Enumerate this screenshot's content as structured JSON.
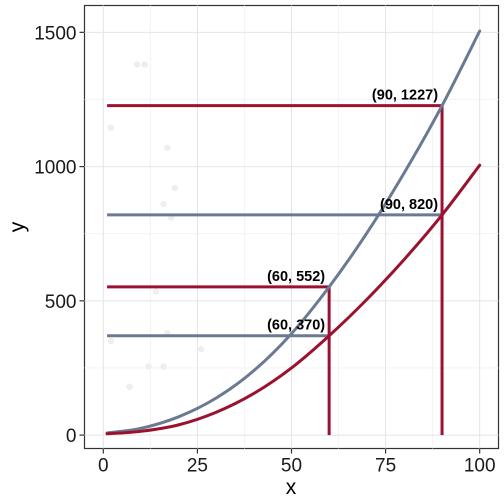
{
  "chart_data": {
    "type": "line",
    "xlabel": "x",
    "ylabel": "y",
    "xlim": [
      -5,
      105
    ],
    "ylim": [
      -50,
      1600
    ],
    "xticks": [
      0,
      25,
      50,
      75,
      100
    ],
    "yticks": [
      0,
      500,
      1000,
      1500
    ],
    "grid": true,
    "legend": "none",
    "series": [
      {
        "color": "#6b7a93",
        "x": [
          1,
          10,
          20,
          30,
          40,
          50,
          60,
          70,
          80,
          90,
          100
        ],
        "y": [
          8,
          25,
          68,
          138,
          240,
          378,
          552,
          752,
          978,
          1227,
          1505
        ]
      },
      {
        "color": "#9b1230",
        "x": [
          1,
          10,
          20,
          30,
          40,
          50,
          60,
          70,
          80,
          90,
          100
        ],
        "y": [
          5,
          14,
          38,
          85,
          155,
          250,
          370,
          505,
          655,
          820,
          1005
        ]
      }
    ],
    "guides": [
      {
        "x": 60,
        "y": 552,
        "label": "(60, 552)",
        "color": "#9b1230",
        "x_start": 1
      },
      {
        "x": 60,
        "y": 370,
        "label": "(60, 370)",
        "color": "#6b7a93",
        "x_start": 1
      },
      {
        "x": 90,
        "y": 1227,
        "label": "(90, 1227)",
        "color": "#9b1230",
        "x_start": 1
      },
      {
        "x": 90,
        "y": 820,
        "label": "(90, 820)",
        "color": "#6b7a93",
        "x_start": 1
      }
    ],
    "vertical_lines": [
      {
        "x": 60,
        "from": 0,
        "to": 552,
        "color": "#9b1230"
      },
      {
        "x": 90,
        "from": 0,
        "to": 1227,
        "color": "#9b1230"
      }
    ],
    "background_points": {
      "color": "#eeeeee",
      "x": [
        2,
        9,
        11,
        17,
        19,
        16,
        18,
        2,
        7,
        12,
        16,
        14,
        26,
        17
      ],
      "y": [
        1145,
        1380,
        1380,
        1070,
        920,
        860,
        810,
        350,
        180,
        255,
        255,
        535,
        320,
        380
      ]
    }
  }
}
